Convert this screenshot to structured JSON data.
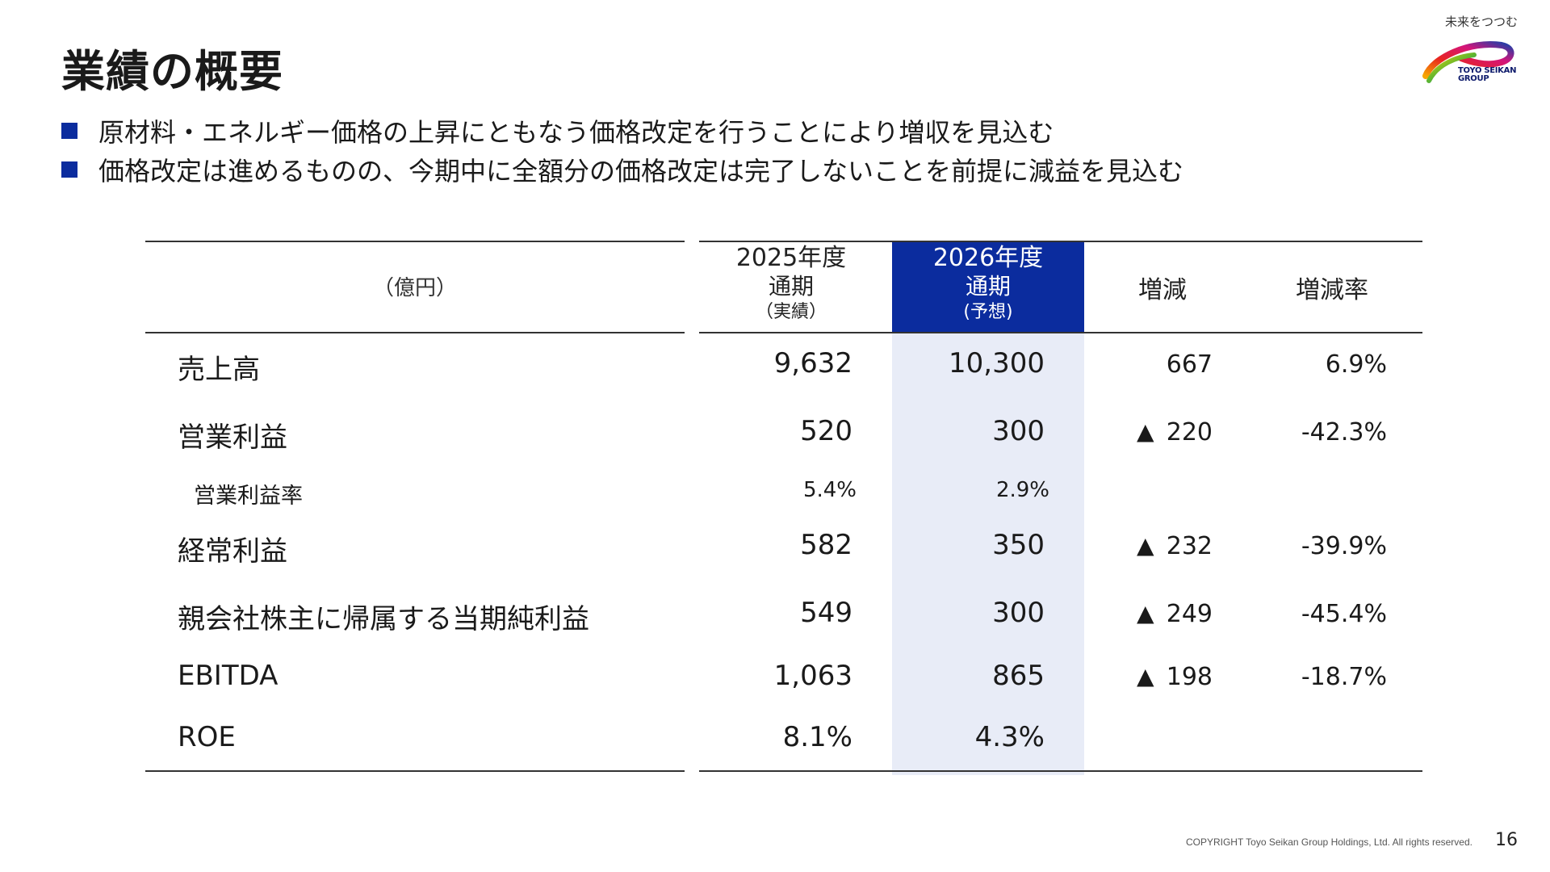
{
  "title": "業績の概要",
  "logo": {
    "tagline": "未来をつつむ",
    "brand_line1": "TOYO SEIKAN",
    "brand_line2": "GROUP"
  },
  "bullets": [
    "原材料・エネルギー価格の上昇にともなう価格改定を行うことにより増収を見込む",
    "価格改定は進めるものの、今期中に全額分の価格改定は完了しないことを前提に減益を見込む"
  ],
  "table": {
    "unit": "（億円）",
    "col_2025": {
      "line1": "2025年度",
      "line2": "通期",
      "line3": "（実績）"
    },
    "col_2026": {
      "line1": "2026年度",
      "line2": "通期",
      "line3": "(予想)"
    },
    "col_diff": "増減",
    "col_rate": "増減率",
    "rows": [
      {
        "label": "売上高",
        "v2025": "9,632",
        "v2026": "10,300",
        "diff_mark": "",
        "diff": "667",
        "rate": "6.9%"
      },
      {
        "label": "営業利益",
        "v2025": "520",
        "v2026": "300",
        "diff_mark": "▲",
        "diff": "220",
        "rate": "-42.3%"
      },
      {
        "label": "営業利益率",
        "v2025": "5.4%",
        "v2026": "2.9%",
        "diff_mark": "",
        "diff": "",
        "rate": ""
      },
      {
        "label": "経常利益",
        "v2025": "582",
        "v2026": "350",
        "diff_mark": "▲",
        "diff": "232",
        "rate": "-39.9%"
      },
      {
        "label": "親会社株主に帰属する当期純利益",
        "v2025": "549",
        "v2026": "300",
        "diff_mark": "▲",
        "diff": "249",
        "rate": "-45.4%"
      },
      {
        "label": "EBITDA",
        "v2025": "1,063",
        "v2026": "865",
        "diff_mark": "▲",
        "diff": "198",
        "rate": "-18.7%"
      },
      {
        "label": "ROE",
        "v2025": "8.1%",
        "v2026": "4.3%",
        "diff_mark": "",
        "diff": "",
        "rate": ""
      }
    ]
  },
  "footer": {
    "copyright": "COPYRIGHT Toyo Seikan Group Holdings, Ltd. All rights reserved.",
    "page": "16"
  },
  "colors": {
    "accent": "#0b2c9e",
    "highlight": "#e8ecf7"
  }
}
